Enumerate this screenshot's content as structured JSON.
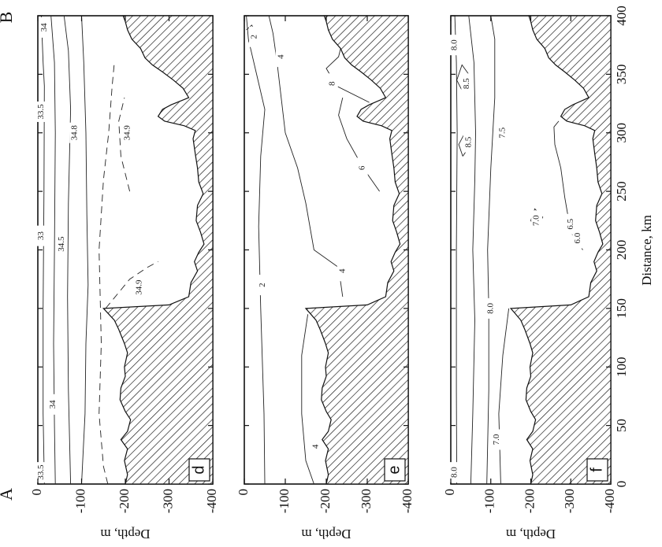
{
  "figure": {
    "corner_labels": {
      "start": "A",
      "end": "B"
    },
    "distance_axis": {
      "title": "Distance, km",
      "ticks": [
        "0",
        "50",
        "100",
        "150",
        "200",
        "250",
        "300",
        "350",
        "400"
      ]
    },
    "depth_axis": {
      "title": "Depth, m",
      "ticks": [
        "0",
        "-100",
        "-200",
        "-300",
        "-400"
      ]
    },
    "panels": [
      {
        "letter": "d",
        "contour_labels": [
          {
            "text": "33.5",
            "d": 10,
            "z": -8
          },
          {
            "text": "34",
            "d": 68,
            "z": -35
          },
          {
            "text": "33",
            "d": 212,
            "z": -8
          },
          {
            "text": "34.5",
            "d": 205,
            "z": -55
          },
          {
            "text": "34.9",
            "d": 168,
            "z": -232
          },
          {
            "text": "33.5",
            "d": 318,
            "z": -8
          },
          {
            "text": "34.8",
            "d": 300,
            "z": -85
          },
          {
            "text": "34.9",
            "d": 300,
            "z": -205
          },
          {
            "text": "34",
            "d": 390,
            "z": -15
          }
        ]
      },
      {
        "letter": "e",
        "contour_labels": [
          {
            "text": "4",
            "d": 32,
            "z": -175
          },
          {
            "text": "2",
            "d": 170,
            "z": -45
          },
          {
            "text": "4",
            "d": 182,
            "z": -240
          },
          {
            "text": "6",
            "d": 270,
            "z": -288
          },
          {
            "text": "8",
            "d": 342,
            "z": -215
          },
          {
            "text": "2",
            "d": 382,
            "z": -25
          },
          {
            "text": "4",
            "d": 365,
            "z": -90
          }
        ]
      },
      {
        "letter": "f",
        "contour_labels": [
          {
            "text": "8.0",
            "d": 10,
            "z": -10
          },
          {
            "text": "7.0",
            "d": 38,
            "z": -115
          },
          {
            "text": "8.0",
            "d": 150,
            "z": -100
          },
          {
            "text": "7.0",
            "d": 225,
            "z": -215
          },
          {
            "text": "6.5",
            "d": 222,
            "z": -300
          },
          {
            "text": "6.0",
            "d": 210,
            "z": -318
          },
          {
            "text": "8.5",
            "d": 292,
            "z": -45
          },
          {
            "text": "7.5",
            "d": 300,
            "z": -130
          },
          {
            "text": "8.5",
            "d": 342,
            "z": -40
          },
          {
            "text": "8.0",
            "d": 375,
            "z": -10
          }
        ]
      }
    ]
  }
}
